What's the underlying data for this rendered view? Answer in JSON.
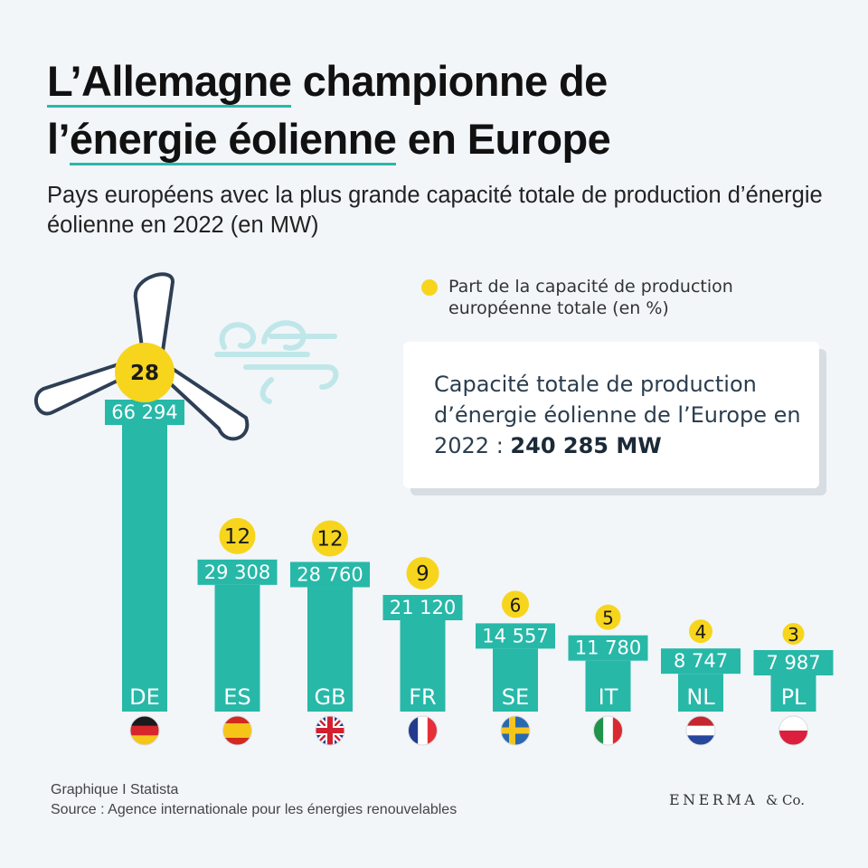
{
  "title": {
    "line1_hl": "L’Allemagne",
    "line1_rest": " championne de",
    "line2_pre": "l’",
    "line2_hl": "énergie éolienne",
    "line2_rest": " en Europe"
  },
  "subtitle": "Pays européens avec la plus grande capacité totale de production d’énergie éolienne en 2022 (en MW)",
  "legend": {
    "label": "Part de la capacité de production européenne totale (en %)"
  },
  "total": {
    "text": "Capacité totale de production d’énergie éolienne de l’Europe en 2022 : ",
    "value": "240 285 MW"
  },
  "chart_data": {
    "type": "bar",
    "title": "L’Allemagne championne de l’énergie éolienne en Europe",
    "categories": [
      "DE",
      "ES",
      "GB",
      "FR",
      "SE",
      "IT",
      "NL",
      "PL"
    ],
    "values": [
      66294,
      29308,
      28760,
      21120,
      14557,
      11780,
      8747,
      7987
    ],
    "value_labels": [
      "66 294",
      "29 308",
      "28 760",
      "21 120",
      "14 557",
      "11 780",
      "8 747",
      "7 987"
    ],
    "share_percent": [
      28,
      12,
      12,
      9,
      6,
      5,
      4,
      3
    ],
    "unit": "MW",
    "ylim": [
      0,
      66294
    ]
  },
  "colors": {
    "bar": "#27b8a8",
    "share_dot": "#f7d51d",
    "blade": "#2e3f55"
  },
  "footer": {
    "line1": "Graphique I Statista",
    "line2": "Source : Agence internationale pour les énergies renouvelables"
  },
  "brand": {
    "name": "ENERMA",
    "suffix": "& Co."
  }
}
